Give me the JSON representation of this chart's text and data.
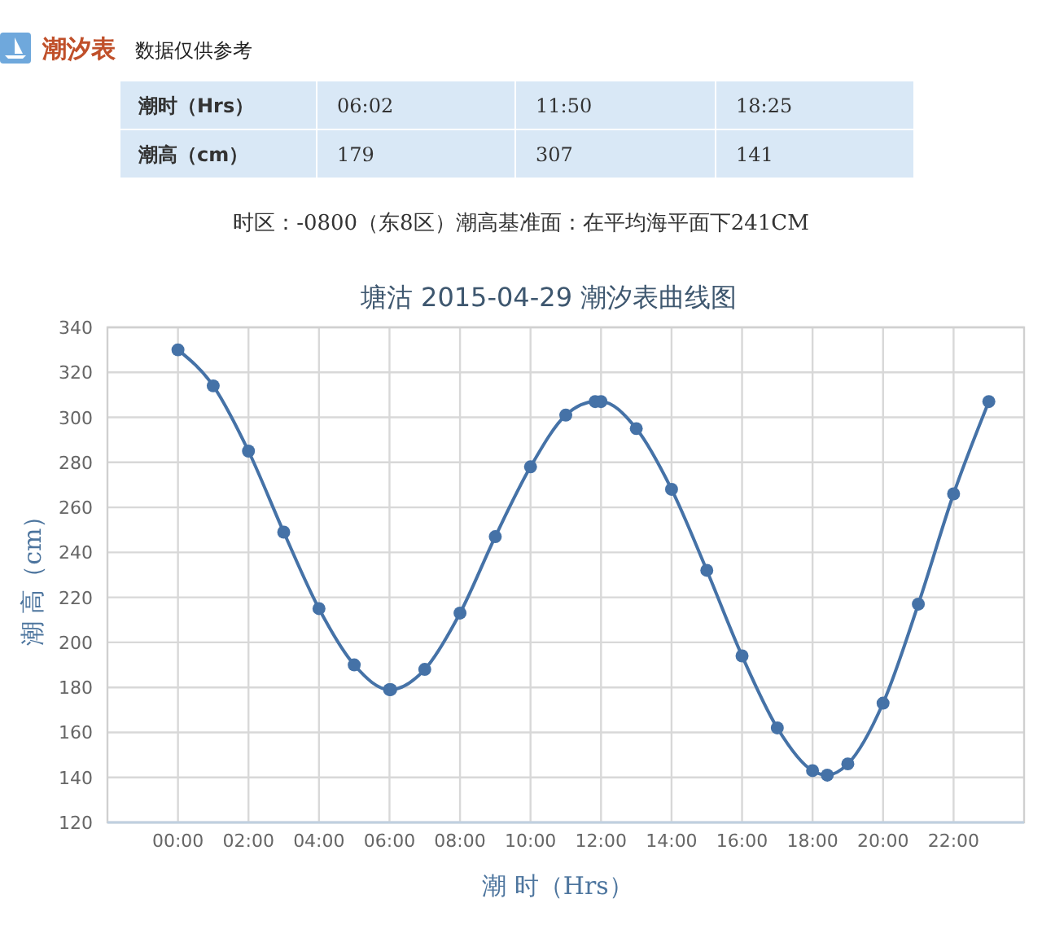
{
  "chart_data": {
    "type": "line",
    "title": "塘沽 2015-04-29 潮汐表曲线图",
    "xlabel": "潮 时（Hrs）",
    "ylabel": "潮 高（cm）",
    "annotations": [
      "潮汐表",
      "数据仅供参考",
      "潮时（Hrs）",
      "06:02",
      "11:50",
      "18:25",
      "潮高（cm）",
      "179",
      "307",
      "141",
      "时区：-0800（东8区）潮高基准面：在平均海平面下241CM"
    ],
    "x": [
      0,
      1,
      2,
      3,
      4,
      5,
      6,
      6.033,
      7,
      8,
      9,
      10,
      11,
      11.833,
      12,
      13,
      14,
      15,
      16,
      17,
      18,
      18.417,
      19,
      20,
      21,
      22,
      23
    ],
    "values": [
      330,
      314,
      285,
      249,
      215,
      190,
      179,
      179,
      188,
      213,
      247,
      278,
      301,
      307,
      307,
      295,
      268,
      232,
      194,
      162,
      143,
      141,
      146,
      173,
      217,
      266,
      307
    ],
    "color": "#4572a7",
    "marker": "circle",
    "grid": true,
    "xlim": [
      -2,
      24
    ],
    "xticks": [
      {
        "value": 0,
        "label": "00:00"
      },
      {
        "value": 2,
        "label": "02:00"
      },
      {
        "value": 4,
        "label": "04:00"
      },
      {
        "value": 6,
        "label": "06:00"
      },
      {
        "value": 8,
        "label": "08:00"
      },
      {
        "value": 10,
        "label": "10:00"
      },
      {
        "value": 12,
        "label": "12:00"
      },
      {
        "value": 14,
        "label": "14:00"
      },
      {
        "value": 16,
        "label": "16:00"
      },
      {
        "value": 18,
        "label": "18:00"
      },
      {
        "value": 20,
        "label": "20:00"
      },
      {
        "value": 22,
        "label": "22:00"
      }
    ],
    "ylim": [
      120,
      340
    ],
    "yticks": [
      120,
      140,
      160,
      180,
      200,
      220,
      240,
      260,
      280,
      300,
      320,
      340
    ]
  }
}
